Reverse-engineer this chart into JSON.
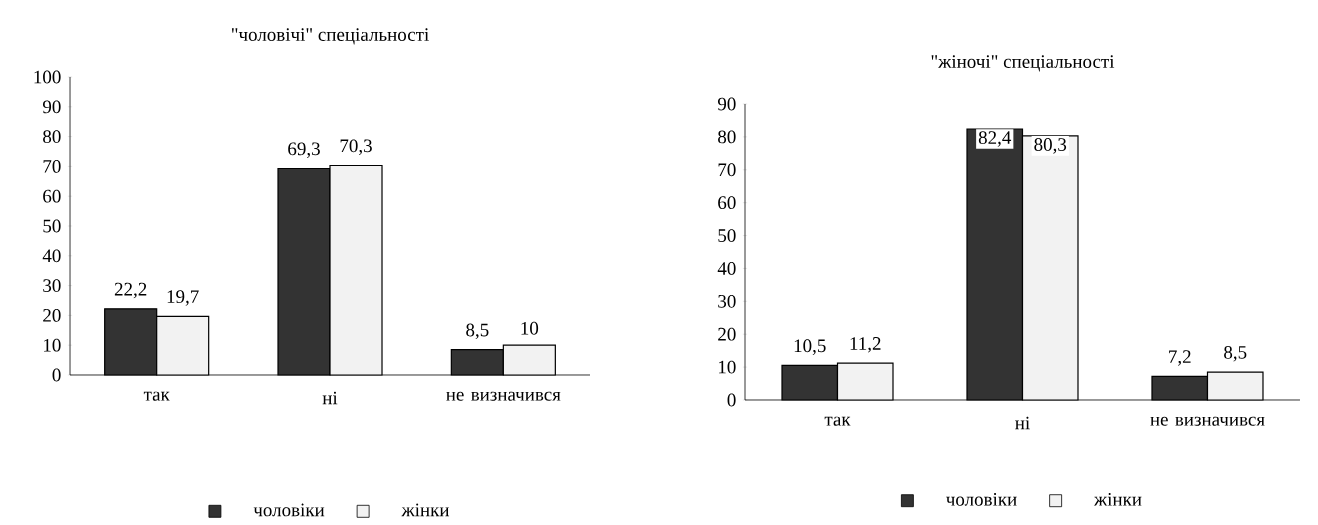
{
  "chart_data": [
    {
      "type": "bar",
      "title": "\"чоловічі\" спеціальності",
      "categories": [
        "так",
        "ні",
        "не визначився"
      ],
      "series": [
        {
          "name": "чоловіки",
          "color": "#333333",
          "values": [
            22.2,
            69.3,
            8.5
          ],
          "value_labels": [
            "22,2",
            "69,3",
            "8,5"
          ]
        },
        {
          "name": "жінки",
          "color": "#f2f2f2",
          "values": [
            19.7,
            70.3,
            10
          ],
          "value_labels": [
            "19,7",
            "70,3",
            "10"
          ]
        }
      ],
      "ylim": [
        0,
        100
      ],
      "yticks": [
        0,
        10,
        20,
        30,
        40,
        50,
        60,
        70,
        80,
        90,
        100
      ],
      "legend": "bottom"
    },
    {
      "type": "bar",
      "title": "\"жіночі\" спеціальності",
      "categories": [
        "так",
        "ні",
        "не визначився"
      ],
      "series": [
        {
          "name": "чоловіки",
          "color": "#333333",
          "values": [
            10.5,
            82.4,
            7.2
          ],
          "value_labels": [
            "10,5",
            "82,4",
            "7,2"
          ]
        },
        {
          "name": "жінки",
          "color": "#f2f2f2",
          "values": [
            11.2,
            80.3,
            8.5
          ],
          "value_labels": [
            "11,2",
            "80,3",
            "8,5"
          ]
        }
      ],
      "ylim": [
        0,
        90
      ],
      "yticks": [
        0,
        10,
        20,
        30,
        40,
        50,
        60,
        70,
        80,
        90
      ],
      "legend": "bottom"
    }
  ]
}
